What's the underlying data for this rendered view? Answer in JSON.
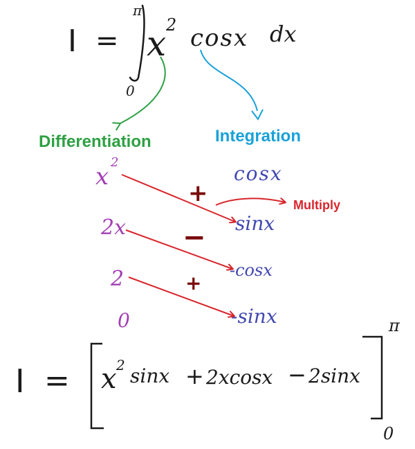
{
  "colors": {
    "ink": "#1a1a1a",
    "green": "#2ea043",
    "blue": "#1aa1d8",
    "red": "#d7262c",
    "purple": "#a23fb3",
    "navy": "#4248b0",
    "sign": "#7a0a0a"
  },
  "integral": {
    "lhs": "I",
    "eq": "=",
    "upper": "π",
    "lower": "0",
    "first": "x",
    "first_exp": "2",
    "second": "cosx",
    "dx": "dx"
  },
  "labels": {
    "differentiation": "Differentiation",
    "integration": "Integration",
    "multiply": "Multiply"
  },
  "table": {
    "diff_column": [
      {
        "base": "x",
        "exp": "2"
      },
      {
        "base": "2x",
        "exp": ""
      },
      {
        "base": "2",
        "exp": ""
      },
      {
        "base": "0",
        "exp": ""
      }
    ],
    "int_column": [
      "cosx",
      "sinx",
      "-cosx",
      "-sinx"
    ],
    "signs": [
      "+",
      "−",
      "+"
    ]
  },
  "result": {
    "lhs": "I",
    "eq": "=",
    "term1_base": "x",
    "term1_exp": "2",
    "term1_tail": "sinx",
    "plus": "+",
    "term2": "2xcosx",
    "minus": "−",
    "term3": "2sinx",
    "upper": "π",
    "lower": "0"
  }
}
